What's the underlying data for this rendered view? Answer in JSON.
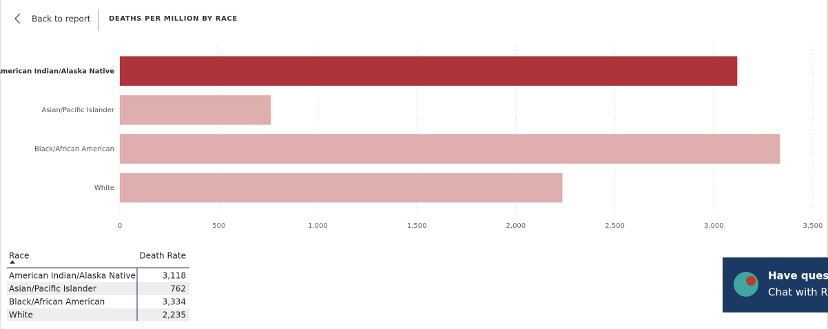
{
  "header": {
    "back": "Back to report",
    "title": "DEATHS PER MILLION BY RACE"
  },
  "chart_data": {
    "type": "barh",
    "categories": [
      "American Indian/Alaska Native",
      "Asian/Pacific Islander",
      "Black/African American",
      "White"
    ],
    "values": [
      3118,
      762,
      3334,
      2235
    ],
    "colors": [
      "#ad343a",
      "#dfaeaf",
      "#dfaeaf",
      "#dfaeaf"
    ],
    "selected": 0,
    "xlim": [
      0,
      3500
    ],
    "xticks": [
      0,
      500,
      {
        "value": 1000,
        "label": "1,000"
      },
      {
        "value": 1500,
        "label": "1,500"
      },
      {
        "value": 2000,
        "label": "2,000"
      },
      {
        "value": 2500,
        "label": "2,500"
      },
      {
        "value": 3000,
        "label": "3,000"
      },
      {
        "value": 3500,
        "label": "3,500"
      }
    ],
    "grid": true
  },
  "table": {
    "columns": [
      "Race",
      "Death Rate"
    ],
    "rows": [
      [
        "American Indian/Alaska Native",
        "3,118"
      ],
      [
        "Asian/Pacific Islander",
        "762"
      ],
      [
        "Black/African American",
        "3,334"
      ],
      [
        "White",
        "2,235"
      ]
    ]
  },
  "chat": {
    "line1": "Have questi",
    "line2": "Chat with Ro"
  }
}
